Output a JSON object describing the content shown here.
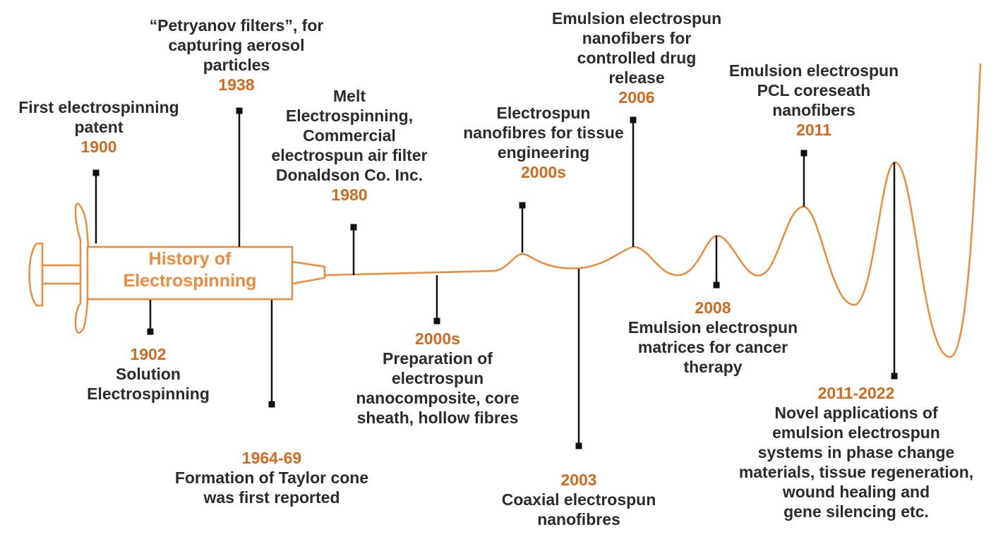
{
  "syringe_label": "History of\nElectrospinning",
  "colors": {
    "accent": "#D2691E",
    "line": "#F08A3A",
    "text": "#2b2b2b",
    "marker": "#111111"
  },
  "events": [
    {
      "id": "e1900",
      "year": "1900",
      "text": "First electrospinning\npatent"
    },
    {
      "id": "e1902",
      "year": "1902",
      "text": "Solution\nElectrospinning"
    },
    {
      "id": "e1938",
      "year": "1938",
      "text": "“Petryanov filters”, for\ncapturing aerosol\nparticles"
    },
    {
      "id": "e1964",
      "year": "1964-69",
      "text": "Formation of Taylor cone\nwas first reported"
    },
    {
      "id": "e1980",
      "year": "1980",
      "text": "Melt\nElectrospinning,\nCommercial\nelectrospun air filter\nDonaldson Co. Inc."
    },
    {
      "id": "e2000a",
      "year": "2000s",
      "text": "Electrospun\nnanofibres for tissue\nengineering"
    },
    {
      "id": "e2000b",
      "year": "2000s",
      "text": "Preparation of\nelectrospun\nnanocomposite, core\nsheath, hollow fibres"
    },
    {
      "id": "e2003",
      "year": "2003",
      "text": "Coaxial electrospun\nnanofibres"
    },
    {
      "id": "e2006",
      "year": "2006",
      "text": "Emulsion electrospun\nnanofibers for\ncontrolled drug\nrelease"
    },
    {
      "id": "e2008",
      "year": "2008",
      "text": "Emulsion electrospun\nmatrices for cancer\ntherapy"
    },
    {
      "id": "e2011",
      "year": "2011",
      "text": "Emulsion electrospun\nPCL coreseath\nnanofibers"
    },
    {
      "id": "e2022",
      "year": "2011-2022",
      "text": "Novel applications of\nemulsion electrospun\nsystems in phase change\nmaterials, tissue regeneration,\nwound healing and\ngene silencing etc."
    }
  ]
}
